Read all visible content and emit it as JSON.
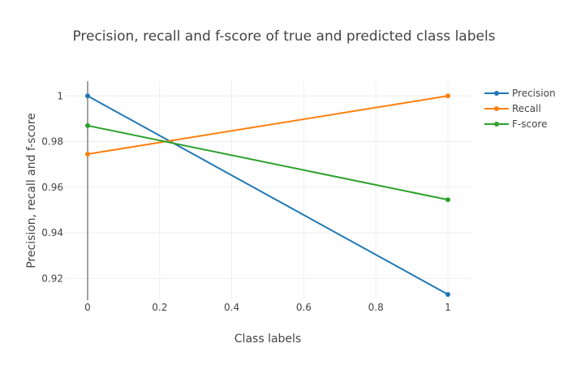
{
  "chart_data": {
    "type": "line",
    "title": "Precision, recall and f-score of true and predicted class labels",
    "xlabel": "Class labels",
    "ylabel": "Precision, recall and f-score",
    "xlim": [
      0,
      1
    ],
    "ylim": [
      0.9105,
      1.0065
    ],
    "x_ticks": [
      "0",
      "0.2",
      "0.4",
      "0.6",
      "0.8",
      "1"
    ],
    "y_ticks": [
      "0.92",
      "0.94",
      "0.96",
      "0.98",
      "1"
    ],
    "x_tick_values": [
      0,
      0.2,
      0.4,
      0.6,
      0.8,
      1
    ],
    "y_tick_values": [
      0.92,
      0.94,
      0.96,
      0.98,
      1
    ],
    "grid": true,
    "legend_position": "top-right",
    "series": [
      {
        "name": "Precision",
        "color": "#1f77b4",
        "x": [
          0,
          1
        ],
        "y": [
          1.0,
          0.913
        ]
      },
      {
        "name": "Recall",
        "color": "#ff7f0e",
        "x": [
          0,
          1
        ],
        "y": [
          0.9745,
          1.0
        ]
      },
      {
        "name": "F-score",
        "color": "#2ca02c",
        "x": [
          0,
          1
        ],
        "y": [
          0.987,
          0.9545
        ]
      }
    ]
  }
}
